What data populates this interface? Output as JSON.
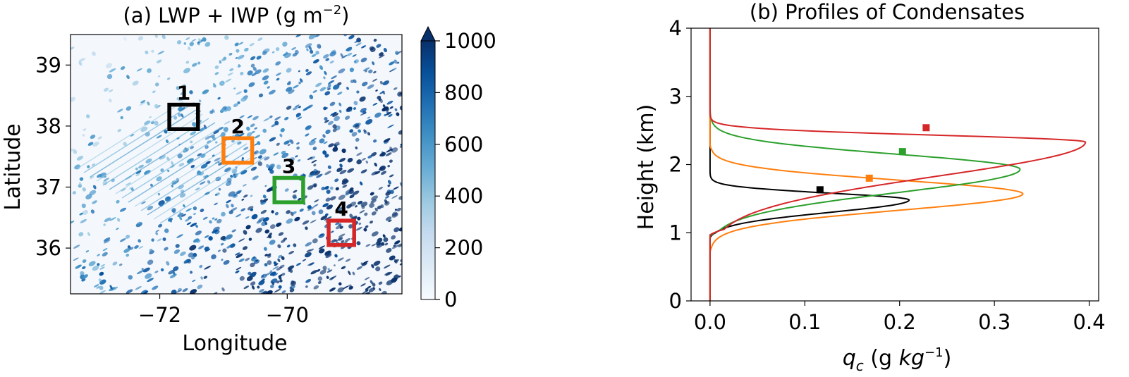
{
  "chart_data": [
    {
      "type": "heatmap",
      "title": "(a) LWP + IWP (g m",
      "title_sup": "−2",
      "title_close": ")",
      "xlabel": "Longitude",
      "ylabel": "Latitude",
      "xlim": [
        -73.4,
        -68.2
      ],
      "ylim": [
        35.25,
        39.5
      ],
      "xticks": [
        -72,
        -70
      ],
      "xtick_labels": [
        "−72",
        "−70"
      ],
      "yticks": [
        36,
        37,
        38,
        39
      ],
      "ytick_labels": [
        "36",
        "37",
        "38",
        "39"
      ],
      "colorbar": {
        "min": 0,
        "max": 1000,
        "extend": "max",
        "ticks": [
          0,
          200,
          400,
          600,
          800,
          1000
        ],
        "tick_labels": [
          "0",
          "200",
          "400",
          "600",
          "800",
          "1000"
        ],
        "colormap": "Blues",
        "low_color": "#f7fbff",
        "high_color": "#08306b"
      },
      "boxes": [
        {
          "label": "1",
          "lon": [
            -71.85,
            -71.4
          ],
          "lat": [
            37.95,
            38.35
          ],
          "color": "#000000"
        },
        {
          "label": "2",
          "lon": [
            -71.0,
            -70.55
          ],
          "lat": [
            37.4,
            37.8
          ],
          "color": "#ff7f0e"
        },
        {
          "label": "3",
          "lon": [
            -70.2,
            -69.75
          ],
          "lat": [
            36.75,
            37.15
          ],
          "color": "#2ca02c"
        },
        {
          "label": "4",
          "lon": [
            -69.35,
            -68.95
          ],
          "lat": [
            36.05,
            36.45
          ],
          "color": "#d62728"
        }
      ]
    },
    {
      "type": "line",
      "title": "(b) Profiles of Condensates",
      "xlabel_q": "q",
      "xlabel_sub": "c",
      "xlabel_mid": " (g ",
      "xlabel_kg": "kg",
      "xlabel_sup": "−1",
      "xlabel_close": ")",
      "ylabel": "Height (km)",
      "xlim": [
        -0.02,
        0.41
      ],
      "ylim": [
        0,
        4
      ],
      "xticks": [
        0.0,
        0.1,
        0.2,
        0.3,
        0.4
      ],
      "xtick_labels": [
        "0.0",
        "0.1",
        "0.2",
        "0.3",
        "0.4"
      ],
      "yticks": [
        0,
        1,
        2,
        3,
        4
      ],
      "ytick_labels": [
        "0",
        "1",
        "2",
        "3",
        "4"
      ],
      "series": [
        {
          "color": "#000000",
          "peak_x": 0.21,
          "peak_y": 1.48,
          "sigma_low": 0.18,
          "sigma_high": 0.1,
          "base": 0.92,
          "top": 2.25,
          "marker": [
            0.116,
            1.63
          ]
        },
        {
          "color": "#ff7f0e",
          "peak_x": 0.33,
          "peak_y": 1.57,
          "sigma_low": 0.24,
          "sigma_high": 0.2,
          "base": 0.7,
          "top": 2.3,
          "marker": [
            0.168,
            1.8
          ]
        },
        {
          "color": "#2ca02c",
          "peak_x": 0.327,
          "peak_y": 1.93,
          "sigma_low": 0.34,
          "sigma_high": 0.22,
          "base": 0.95,
          "top": 3.05,
          "marker": [
            0.203,
            2.19
          ]
        },
        {
          "color": "#d62728",
          "peak_x": 0.396,
          "peak_y": 2.33,
          "sigma_low": 0.5,
          "sigma_high": 0.1,
          "base": 0.97,
          "top": 3.1,
          "marker": [
            0.228,
            2.54
          ]
        }
      ]
    }
  ]
}
